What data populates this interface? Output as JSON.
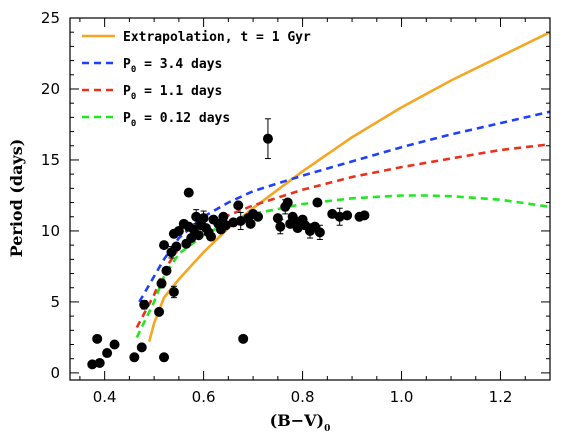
{
  "chart_data": {
    "type": "scatter",
    "xlabel": "(B−V)",
    "xlabel_sub": "0",
    "ylabel": "Period (days)",
    "xlim": [
      0.33,
      1.3
    ],
    "ylim": [
      -0.5,
      25
    ],
    "xticks": [
      0.4,
      0.6,
      0.8,
      1.0,
      1.2
    ],
    "xtick_labels": [
      "0.4",
      "0.6",
      "0.8",
      "1.0",
      "1.2"
    ],
    "yticks": [
      0,
      5,
      10,
      15,
      20,
      25
    ],
    "ytick_labels": [
      "0",
      "5",
      "10",
      "15",
      "20",
      "25"
    ],
    "legend_position": "top-left",
    "curves": [
      {
        "name": "Extrapolation, t = 1 Gyr",
        "name_parts": [
          "Extrapolation, t = 1 Gyr",
          "",
          ""
        ],
        "color": "#f5a623",
        "style": "solid",
        "x": [
          0.49,
          0.5,
          0.52,
          0.55,
          0.6,
          0.65,
          0.7,
          0.8,
          0.9,
          1.0,
          1.1,
          1.2,
          1.3
        ],
        "y": [
          2.2,
          3.5,
          5.3,
          6.6,
          8.5,
          10.2,
          11.6,
          14.2,
          16.6,
          18.7,
          20.6,
          22.3,
          24.0
        ]
      },
      {
        "name": "P0 = 3.4 days",
        "name_parts": [
          "P",
          "0",
          " = 3.4 days"
        ],
        "color": "#1f3fff",
        "style": "dashed",
        "x": [
          0.47,
          0.5,
          0.52,
          0.55,
          0.6,
          0.65,
          0.7,
          0.8,
          0.9,
          1.0,
          1.1,
          1.2,
          1.3
        ],
        "y": [
          5.0,
          6.8,
          8.0,
          9.5,
          11.0,
          12.0,
          12.8,
          13.9,
          14.9,
          15.9,
          16.8,
          17.6,
          18.4
        ]
      },
      {
        "name": "P0 = 1.1 days",
        "name_parts": [
          "P",
          "0",
          " = 1.1 days"
        ],
        "color": "#e8321e",
        "style": "dashed",
        "x": [
          0.465,
          0.5,
          0.52,
          0.55,
          0.6,
          0.65,
          0.7,
          0.8,
          0.9,
          1.0,
          1.1,
          1.2,
          1.3
        ],
        "y": [
          3.2,
          5.5,
          7.2,
          8.8,
          10.2,
          11.1,
          11.8,
          12.9,
          13.8,
          14.5,
          15.1,
          15.7,
          16.1
        ]
      },
      {
        "name": "P0 = 0.12 days",
        "name_parts": [
          "P",
          "0",
          " = 0.12 days"
        ],
        "color": "#1fe81f",
        "style": "dashed",
        "x": [
          0.465,
          0.5,
          0.52,
          0.55,
          0.6,
          0.65,
          0.7,
          0.8,
          0.9,
          1.0,
          1.05,
          1.1,
          1.2,
          1.3
        ],
        "y": [
          2.5,
          5.0,
          6.8,
          8.4,
          9.7,
          10.6,
          11.2,
          11.9,
          12.3,
          12.5,
          12.5,
          12.45,
          12.2,
          11.7
        ]
      }
    ],
    "points": [
      {
        "x": 0.375,
        "y": 0.6
      },
      {
        "x": 0.385,
        "y": 2.4
      },
      {
        "x": 0.39,
        "y": 0.7
      },
      {
        "x": 0.405,
        "y": 1.4
      },
      {
        "x": 0.42,
        "y": 2.0
      },
      {
        "x": 0.46,
        "y": 1.1
      },
      {
        "x": 0.475,
        "y": 1.8
      },
      {
        "x": 0.48,
        "y": 4.8,
        "err": 0.3
      },
      {
        "x": 0.51,
        "y": 4.3
      },
      {
        "x": 0.515,
        "y": 6.3,
        "err": 0.3
      },
      {
        "x": 0.52,
        "y": 1.1
      },
      {
        "x": 0.52,
        "y": 9.0
      },
      {
        "x": 0.525,
        "y": 7.2
      },
      {
        "x": 0.535,
        "y": 8.5,
        "err": 0.4
      },
      {
        "x": 0.54,
        "y": 5.7,
        "err": 0.4
      },
      {
        "x": 0.54,
        "y": 9.8
      },
      {
        "x": 0.545,
        "y": 8.9
      },
      {
        "x": 0.55,
        "y": 10.0
      },
      {
        "x": 0.56,
        "y": 10.5
      },
      {
        "x": 0.565,
        "y": 9.1
      },
      {
        "x": 0.57,
        "y": 10.3
      },
      {
        "x": 0.57,
        "y": 12.7
      },
      {
        "x": 0.575,
        "y": 9.5
      },
      {
        "x": 0.58,
        "y": 10.1
      },
      {
        "x": 0.585,
        "y": 11.0,
        "err": 0.5
      },
      {
        "x": 0.59,
        "y": 9.7
      },
      {
        "x": 0.595,
        "y": 10.4
      },
      {
        "x": 0.6,
        "y": 10.9,
        "err": 0.5
      },
      {
        "x": 0.605,
        "y": 10.2
      },
      {
        "x": 0.61,
        "y": 9.9
      },
      {
        "x": 0.615,
        "y": 9.6
      },
      {
        "x": 0.62,
        "y": 10.8
      },
      {
        "x": 0.63,
        "y": 10.5
      },
      {
        "x": 0.635,
        "y": 10.1
      },
      {
        "x": 0.64,
        "y": 11.0
      },
      {
        "x": 0.645,
        "y": 10.4
      },
      {
        "x": 0.66,
        "y": 10.6
      },
      {
        "x": 0.67,
        "y": 11.8
      },
      {
        "x": 0.675,
        "y": 10.7,
        "err": 0.6
      },
      {
        "x": 0.68,
        "y": 2.4
      },
      {
        "x": 0.69,
        "y": 10.9
      },
      {
        "x": 0.695,
        "y": 10.5
      },
      {
        "x": 0.7,
        "y": 11.2
      },
      {
        "x": 0.71,
        "y": 11.0
      },
      {
        "x": 0.73,
        "y": 16.5,
        "err": 1.4
      },
      {
        "x": 0.75,
        "y": 10.9
      },
      {
        "x": 0.755,
        "y": 10.3,
        "err": 0.5
      },
      {
        "x": 0.765,
        "y": 11.7,
        "err": 0.5
      },
      {
        "x": 0.77,
        "y": 12.0
      },
      {
        "x": 0.775,
        "y": 10.5
      },
      {
        "x": 0.78,
        "y": 11.0
      },
      {
        "x": 0.785,
        "y": 10.7
      },
      {
        "x": 0.79,
        "y": 10.2
      },
      {
        "x": 0.8,
        "y": 10.8
      },
      {
        "x": 0.805,
        "y": 10.4
      },
      {
        "x": 0.815,
        "y": 10.0,
        "err": 0.5
      },
      {
        "x": 0.825,
        "y": 10.3
      },
      {
        "x": 0.83,
        "y": 12.0
      },
      {
        "x": 0.835,
        "y": 9.9,
        "err": 0.5
      },
      {
        "x": 0.86,
        "y": 11.2
      },
      {
        "x": 0.875,
        "y": 11.0,
        "err": 0.6
      },
      {
        "x": 0.89,
        "y": 11.1
      },
      {
        "x": 0.915,
        "y": 11.0
      },
      {
        "x": 0.925,
        "y": 11.1
      }
    ]
  }
}
